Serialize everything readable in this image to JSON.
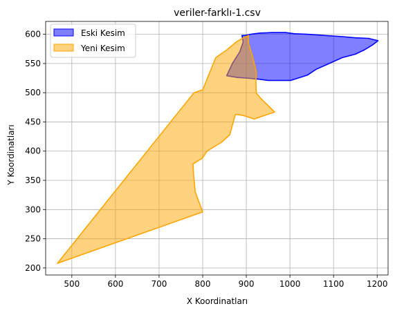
{
  "chart_data": {
    "type": "area",
    "title": "veriler-farklı-1.csv",
    "xlabel": "X Koordinatları",
    "ylabel": "Y Koordinatları",
    "xlim": [
      440,
      1225
    ],
    "ylim": [
      188,
      622
    ],
    "xticks": [
      500,
      600,
      700,
      800,
      900,
      1000,
      1100,
      1200
    ],
    "yticks": [
      200,
      250,
      300,
      350,
      400,
      450,
      500,
      550,
      600
    ],
    "grid": true,
    "legend": "top-left",
    "series": [
      {
        "name": "Eski Kesim",
        "fill": "#0000ff",
        "fill_opacity": 0.5,
        "stroke": "#0000ff",
        "points": [
          [
            890,
            598
          ],
          [
            897,
            598
          ],
          [
            910,
            600
          ],
          [
            930,
            602
          ],
          [
            960,
            603
          ],
          [
            990,
            603
          ],
          [
            1010,
            601
          ],
          [
            1040,
            600
          ],
          [
            1080,
            598
          ],
          [
            1120,
            596
          ],
          [
            1150,
            594
          ],
          [
            1180,
            593
          ],
          [
            1202,
            589
          ],
          [
            1190,
            582
          ],
          [
            1170,
            573
          ],
          [
            1150,
            566
          ],
          [
            1120,
            560
          ],
          [
            1090,
            550
          ],
          [
            1060,
            540
          ],
          [
            1040,
            530
          ],
          [
            1002,
            521
          ],
          [
            950,
            521
          ],
          [
            930,
            523
          ],
          [
            900,
            525
          ],
          [
            880,
            526
          ],
          [
            855,
            529
          ],
          [
            868,
            550
          ],
          [
            885,
            570
          ],
          [
            893,
            587
          ],
          [
            890,
            598
          ]
        ]
      },
      {
        "name": "Yeni Kesim",
        "fill": "#ffa500",
        "fill_opacity": 0.5,
        "stroke": "#ffa500",
        "points": [
          [
            467,
            208
          ],
          [
            800,
            296
          ],
          [
            783,
            330
          ],
          [
            779,
            360
          ],
          [
            778,
            378
          ],
          [
            799,
            388
          ],
          [
            810,
            400
          ],
          [
            843,
            415
          ],
          [
            862,
            428
          ],
          [
            875,
            463
          ],
          [
            893,
            461
          ],
          [
            918,
            455
          ],
          [
            965,
            467
          ],
          [
            935,
            489
          ],
          [
            923,
            499
          ],
          [
            922,
            520
          ],
          [
            923,
            535
          ],
          [
            915,
            560
          ],
          [
            905,
            585
          ],
          [
            905,
            598
          ],
          [
            896,
            595
          ],
          [
            877,
            587
          ],
          [
            855,
            573
          ],
          [
            830,
            560
          ],
          [
            800,
            505
          ],
          [
            780,
            500
          ],
          [
            467,
            208
          ]
        ]
      }
    ]
  }
}
